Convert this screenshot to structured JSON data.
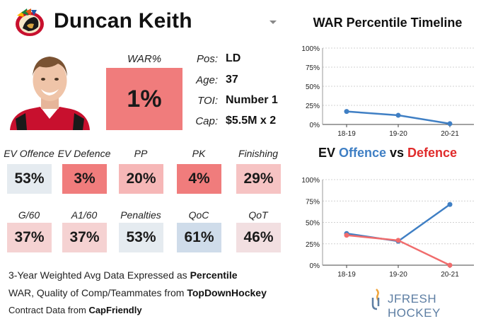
{
  "header": {
    "player_name": "Duncan Keith"
  },
  "war": {
    "label": "WAR%",
    "value": "1%"
  },
  "info": [
    {
      "label": "Pos:",
      "value": "LD"
    },
    {
      "label": "Age:",
      "value": "37"
    },
    {
      "label": "TOI:",
      "value": "Number 1"
    },
    {
      "label": "Cap:",
      "value": "$5.5M x 2"
    }
  ],
  "metrics": [
    {
      "label": "EV Offence",
      "value": "53%",
      "color": "#e5ebf0"
    },
    {
      "label": "EV Defence",
      "value": "3%",
      "color": "#f07c7c"
    },
    {
      "label": "PP",
      "value": "20%",
      "color": "#f6b7b7"
    },
    {
      "label": "PK",
      "value": "4%",
      "color": "#f07c7c"
    },
    {
      "label": "Finishing",
      "value": "29%",
      "color": "#f6c3c3"
    },
    {
      "label": "G/60",
      "value": "37%",
      "color": "#f5d2d2"
    },
    {
      "label": "A1/60",
      "value": "37%",
      "color": "#f5d2d2"
    },
    {
      "label": "Penalties",
      "value": "53%",
      "color": "#e5ebf0"
    },
    {
      "label": "QoC",
      "value": "61%",
      "color": "#cfdcea"
    },
    {
      "label": "QoT",
      "value": "46%",
      "color": "#f2dfe1"
    }
  ],
  "footer": {
    "line1_prefix": "3-Year Weighted Avg Data Expressed as ",
    "line1_bold": "Percentile",
    "line2_prefix": "WAR, Quality of Comp/Teammates from ",
    "line2_bold": "TopDownHockey",
    "line3_prefix": "Contract Data from ",
    "line3_bold": "CapFriendly"
  },
  "brand": {
    "text": "JFRESH HOCKEY"
  },
  "chart_data": [
    {
      "type": "line",
      "title": "WAR Percentile Timeline",
      "categories": [
        "18-19",
        "19-20",
        "20-21"
      ],
      "series": [
        {
          "name": "WAR%",
          "values": [
            17,
            12,
            1
          ],
          "color": "#3f7fc4"
        }
      ],
      "yticks": [
        "0%",
        "25%",
        "50%",
        "75%",
        "100%"
      ],
      "ylim": [
        0,
        100
      ]
    },
    {
      "type": "line",
      "title_parts": [
        "EV ",
        "Offence",
        " vs ",
        "Defence"
      ],
      "categories": [
        "18-19",
        "19-20",
        "20-21"
      ],
      "series": [
        {
          "name": "EV Offence",
          "values": [
            37,
            28,
            71
          ],
          "color": "#3f7fc4"
        },
        {
          "name": "EV Defence",
          "values": [
            35,
            29,
            0
          ],
          "color": "#f06c6c"
        }
      ],
      "yticks": [
        "0%",
        "25%",
        "50%",
        "75%",
        "100%"
      ],
      "ylim": [
        0,
        100
      ]
    }
  ]
}
